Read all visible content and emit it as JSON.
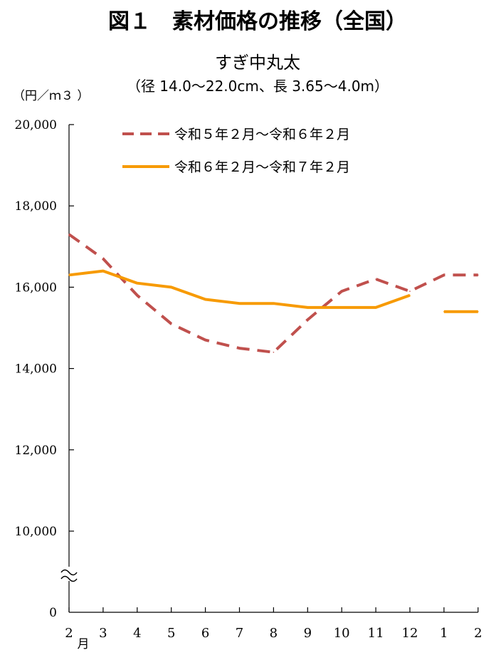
{
  "chart_data": {
    "type": "line",
    "title": "図１　素材価格の推移（全国）",
    "subtitle": "すぎ中丸太",
    "subtitle2": "（径 14.0～22.0cm、長 3.65～4.0m）",
    "ylabel": "（円／ｍ３ ）",
    "x_ticks": [
      "2",
      "3",
      "4",
      "5",
      "6",
      "7",
      "8",
      "9",
      "10",
      "11",
      "12",
      "1",
      "2"
    ],
    "x_unit": "月",
    "y_ticks": [
      "20,000",
      "18,000",
      "16,000",
      "14,000",
      "12,000",
      "10,000"
    ],
    "y_ticks_values": [
      20000,
      18000,
      16000,
      14000,
      12000,
      10000
    ],
    "y_zero_label": "0",
    "ylim": [
      10000,
      20000
    ],
    "axis_break": true,
    "grid": false,
    "legend_position": "top",
    "series": [
      {
        "name": "令和５年２月～令和６年２月",
        "style": "dashed",
        "color": "#c0504d",
        "values": [
          17300,
          16700,
          15800,
          15100,
          14700,
          14500,
          14400,
          15200,
          15900,
          16200,
          15900,
          16300,
          16300
        ]
      },
      {
        "name": "令和６年２月～令和７年２月",
        "style": "solid",
        "color": "#f79a00",
        "values": [
          16300,
          16400,
          16100,
          16000,
          15700,
          15600,
          15600,
          15500,
          15500,
          15500,
          15800,
          15400,
          15400
        ],
        "gap_before_index": 11
      }
    ]
  }
}
